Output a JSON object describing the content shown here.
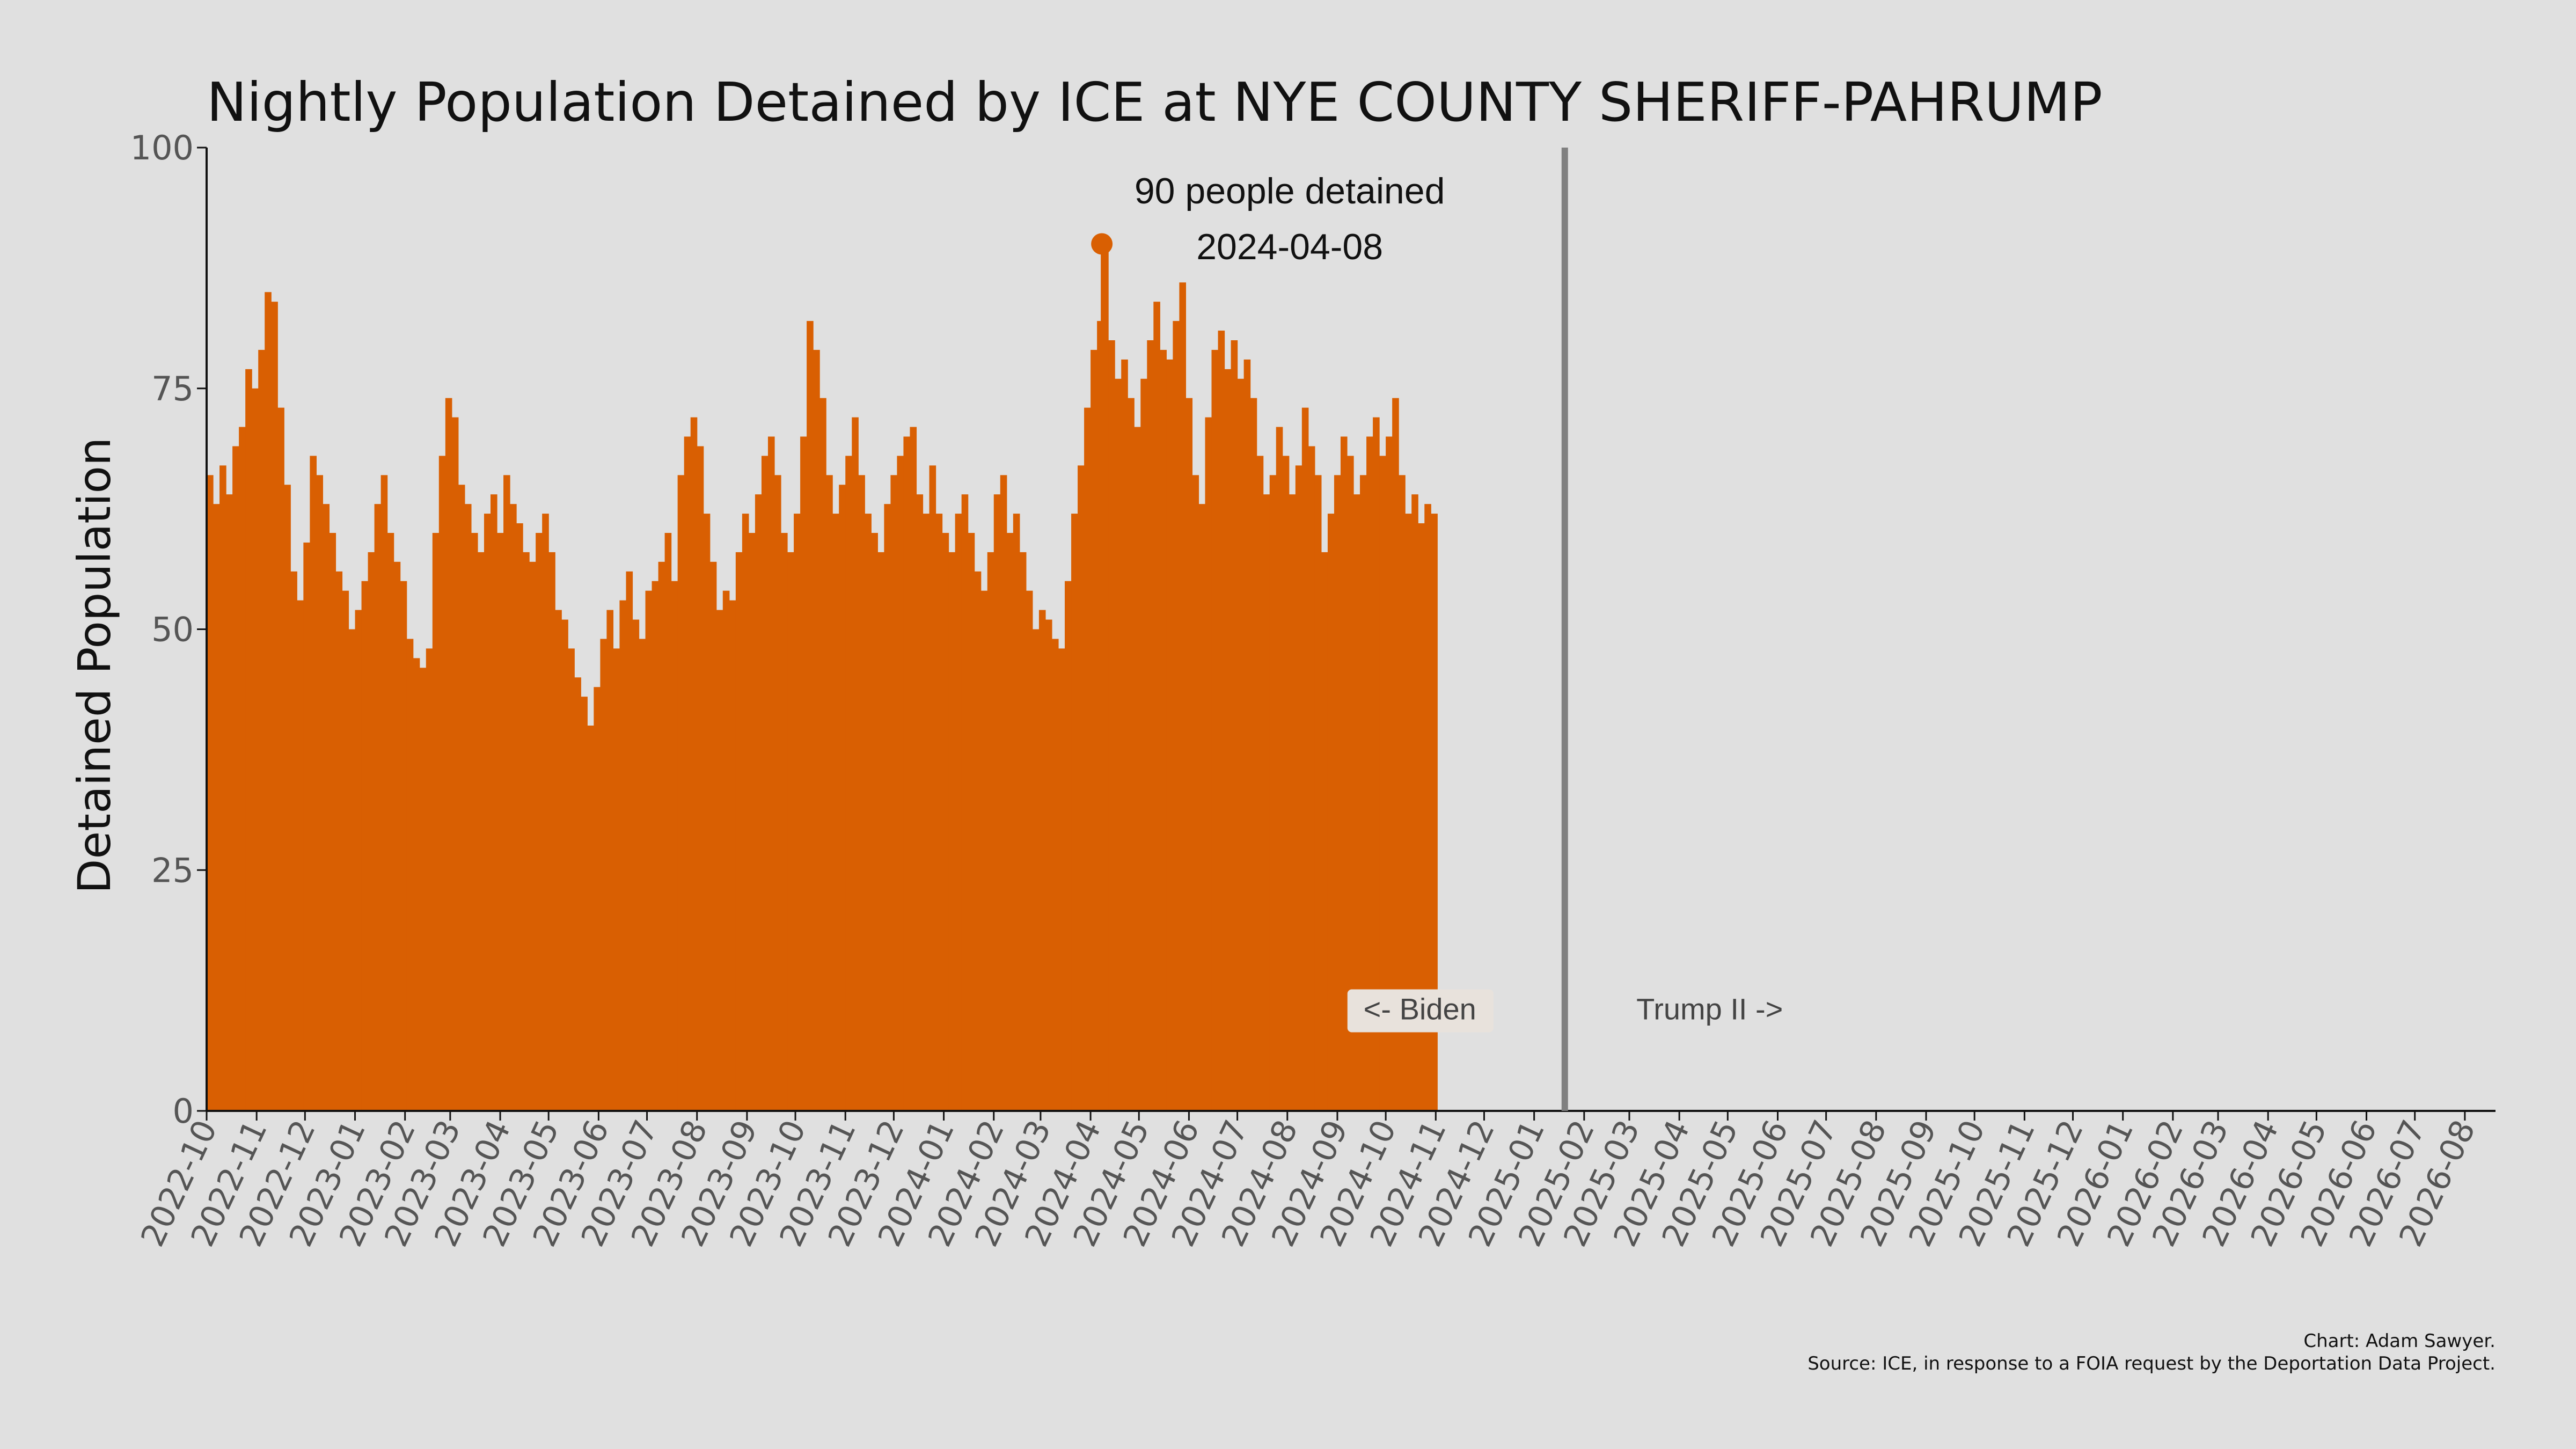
{
  "chart_data": {
    "type": "bar",
    "title": "Nightly Population Detained by ICE at NYE COUNTY SHERIFF-PAHRUMP",
    "xlabel": "",
    "ylabel": "Detained Population",
    "ylim": [
      0,
      100
    ],
    "yticks": [
      "0",
      "25",
      "50",
      "75",
      "100"
    ],
    "xlim": [
      "2022-10-01",
      "2026-08-20"
    ],
    "xticks": [
      "2022-10",
      "2022-11",
      "2022-12",
      "2023-01",
      "2023-02",
      "2023-03",
      "2023-04",
      "2023-05",
      "2023-06",
      "2023-07",
      "2023-08",
      "2023-09",
      "2023-10",
      "2023-11",
      "2023-12",
      "2024-01",
      "2024-02",
      "2024-03",
      "2024-04",
      "2024-05",
      "2024-06",
      "2024-07",
      "2024-08",
      "2024-09",
      "2024-10",
      "2024-11",
      "2024-12",
      "2025-01",
      "2025-02",
      "2025-03",
      "2025-04",
      "2025-05",
      "2025-06",
      "2025-07",
      "2025-08",
      "2025-09",
      "2025-10",
      "2025-11",
      "2025-12",
      "2026-01",
      "2026-02",
      "2026-03",
      "2026-04",
      "2026-05",
      "2026-06",
      "2026-07",
      "2026-08"
    ],
    "grid": false,
    "color": "#d95f02",
    "series": [
      {
        "values": [
          [
            "2022-10-01",
            66
          ],
          [
            "2022-10-05",
            63
          ],
          [
            "2022-10-09",
            67
          ],
          [
            "2022-10-13",
            64
          ],
          [
            "2022-10-17",
            69
          ],
          [
            "2022-10-21",
            71
          ],
          [
            "2022-10-25",
            77
          ],
          [
            "2022-10-29",
            75
          ],
          [
            "2022-11-02",
            79
          ],
          [
            "2022-11-06",
            85
          ],
          [
            "2022-11-10",
            84
          ],
          [
            "2022-11-14",
            73
          ],
          [
            "2022-11-18",
            65
          ],
          [
            "2022-11-22",
            56
          ],
          [
            "2022-11-26",
            53
          ],
          [
            "2022-11-30",
            59
          ],
          [
            "2022-12-04",
            68
          ],
          [
            "2022-12-08",
            66
          ],
          [
            "2022-12-12",
            63
          ],
          [
            "2022-12-16",
            60
          ],
          [
            "2022-12-20",
            56
          ],
          [
            "2022-12-24",
            54
          ],
          [
            "2022-12-28",
            50
          ],
          [
            "2023-01-01",
            52
          ],
          [
            "2023-01-05",
            55
          ],
          [
            "2023-01-09",
            58
          ],
          [
            "2023-01-13",
            63
          ],
          [
            "2023-01-17",
            66
          ],
          [
            "2023-01-21",
            60
          ],
          [
            "2023-01-25",
            57
          ],
          [
            "2023-01-29",
            55
          ],
          [
            "2023-02-02",
            49
          ],
          [
            "2023-02-06",
            47
          ],
          [
            "2023-02-10",
            46
          ],
          [
            "2023-02-14",
            48
          ],
          [
            "2023-02-18",
            60
          ],
          [
            "2023-02-22",
            68
          ],
          [
            "2023-02-26",
            74
          ],
          [
            "2023-03-02",
            72
          ],
          [
            "2023-03-06",
            65
          ],
          [
            "2023-03-10",
            63
          ],
          [
            "2023-03-14",
            60
          ],
          [
            "2023-03-18",
            58
          ],
          [
            "2023-03-22",
            62
          ],
          [
            "2023-03-26",
            64
          ],
          [
            "2023-03-30",
            60
          ],
          [
            "2023-04-03",
            66
          ],
          [
            "2023-04-07",
            63
          ],
          [
            "2023-04-11",
            61
          ],
          [
            "2023-04-15",
            58
          ],
          [
            "2023-04-19",
            57
          ],
          [
            "2023-04-23",
            60
          ],
          [
            "2023-04-27",
            62
          ],
          [
            "2023-05-01",
            58
          ],
          [
            "2023-05-05",
            52
          ],
          [
            "2023-05-09",
            51
          ],
          [
            "2023-05-13",
            48
          ],
          [
            "2023-05-17",
            45
          ],
          [
            "2023-05-21",
            43
          ],
          [
            "2023-05-25",
            40
          ],
          [
            "2023-05-29",
            44
          ],
          [
            "2023-06-02",
            49
          ],
          [
            "2023-06-06",
            52
          ],
          [
            "2023-06-10",
            48
          ],
          [
            "2023-06-14",
            53
          ],
          [
            "2023-06-18",
            56
          ],
          [
            "2023-06-22",
            51
          ],
          [
            "2023-06-26",
            49
          ],
          [
            "2023-06-30",
            54
          ],
          [
            "2023-07-04",
            55
          ],
          [
            "2023-07-08",
            57
          ],
          [
            "2023-07-12",
            60
          ],
          [
            "2023-07-16",
            55
          ],
          [
            "2023-07-20",
            66
          ],
          [
            "2023-07-24",
            70
          ],
          [
            "2023-07-28",
            72
          ],
          [
            "2023-08-01",
            69
          ],
          [
            "2023-08-05",
            62
          ],
          [
            "2023-08-09",
            57
          ],
          [
            "2023-08-13",
            52
          ],
          [
            "2023-08-17",
            54
          ],
          [
            "2023-08-21",
            53
          ],
          [
            "2023-08-25",
            58
          ],
          [
            "2023-08-29",
            62
          ],
          [
            "2023-09-02",
            60
          ],
          [
            "2023-09-06",
            64
          ],
          [
            "2023-09-10",
            68
          ],
          [
            "2023-09-14",
            70
          ],
          [
            "2023-09-18",
            66
          ],
          [
            "2023-09-22",
            60
          ],
          [
            "2023-09-26",
            58
          ],
          [
            "2023-09-30",
            62
          ],
          [
            "2023-10-04",
            70
          ],
          [
            "2023-10-08",
            82
          ],
          [
            "2023-10-12",
            79
          ],
          [
            "2023-10-16",
            74
          ],
          [
            "2023-10-20",
            66
          ],
          [
            "2023-10-24",
            62
          ],
          [
            "2023-10-28",
            65
          ],
          [
            "2023-11-01",
            68
          ],
          [
            "2023-11-05",
            72
          ],
          [
            "2023-11-09",
            66
          ],
          [
            "2023-11-13",
            62
          ],
          [
            "2023-11-17",
            60
          ],
          [
            "2023-11-21",
            58
          ],
          [
            "2023-11-25",
            63
          ],
          [
            "2023-11-29",
            66
          ],
          [
            "2023-12-03",
            68
          ],
          [
            "2023-12-07",
            70
          ],
          [
            "2023-12-11",
            71
          ],
          [
            "2023-12-15",
            64
          ],
          [
            "2023-12-19",
            62
          ],
          [
            "2023-12-23",
            67
          ],
          [
            "2023-12-27",
            62
          ],
          [
            "2023-12-31",
            60
          ],
          [
            "2024-01-04",
            58
          ],
          [
            "2024-01-08",
            62
          ],
          [
            "2024-01-12",
            64
          ],
          [
            "2024-01-16",
            60
          ],
          [
            "2024-01-20",
            56
          ],
          [
            "2024-01-24",
            54
          ],
          [
            "2024-01-28",
            58
          ],
          [
            "2024-02-01",
            64
          ],
          [
            "2024-02-05",
            66
          ],
          [
            "2024-02-09",
            60
          ],
          [
            "2024-02-13",
            62
          ],
          [
            "2024-02-17",
            58
          ],
          [
            "2024-02-21",
            54
          ],
          [
            "2024-02-25",
            50
          ],
          [
            "2024-02-29",
            52
          ],
          [
            "2024-03-04",
            51
          ],
          [
            "2024-03-08",
            49
          ],
          [
            "2024-03-12",
            48
          ],
          [
            "2024-03-16",
            55
          ],
          [
            "2024-03-20",
            62
          ],
          [
            "2024-03-24",
            67
          ],
          [
            "2024-03-28",
            73
          ],
          [
            "2024-04-01",
            79
          ],
          [
            "2024-04-05",
            82
          ],
          [
            "2024-04-08",
            90
          ],
          [
            "2024-04-12",
            80
          ],
          [
            "2024-04-16",
            76
          ],
          [
            "2024-04-20",
            78
          ],
          [
            "2024-04-24",
            74
          ],
          [
            "2024-04-28",
            71
          ],
          [
            "2024-05-02",
            76
          ],
          [
            "2024-05-06",
            80
          ],
          [
            "2024-05-10",
            84
          ],
          [
            "2024-05-14",
            79
          ],
          [
            "2024-05-18",
            78
          ],
          [
            "2024-05-22",
            82
          ],
          [
            "2024-05-26",
            86
          ],
          [
            "2024-05-30",
            74
          ],
          [
            "2024-06-03",
            66
          ],
          [
            "2024-06-07",
            63
          ],
          [
            "2024-06-11",
            72
          ],
          [
            "2024-06-15",
            79
          ],
          [
            "2024-06-19",
            81
          ],
          [
            "2024-06-23",
            77
          ],
          [
            "2024-06-27",
            80
          ],
          [
            "2024-07-01",
            76
          ],
          [
            "2024-07-05",
            78
          ],
          [
            "2024-07-09",
            74
          ],
          [
            "2024-07-13",
            68
          ],
          [
            "2024-07-17",
            64
          ],
          [
            "2024-07-21",
            66
          ],
          [
            "2024-07-25",
            71
          ],
          [
            "2024-07-29",
            68
          ],
          [
            "2024-08-02",
            64
          ],
          [
            "2024-08-06",
            67
          ],
          [
            "2024-08-10",
            73
          ],
          [
            "2024-08-14",
            69
          ],
          [
            "2024-08-18",
            66
          ],
          [
            "2024-08-22",
            58
          ],
          [
            "2024-08-26",
            62
          ],
          [
            "2024-08-30",
            66
          ],
          [
            "2024-09-03",
            70
          ],
          [
            "2024-09-07",
            68
          ],
          [
            "2024-09-11",
            64
          ],
          [
            "2024-09-15",
            66
          ],
          [
            "2024-09-19",
            70
          ],
          [
            "2024-09-23",
            72
          ],
          [
            "2024-09-27",
            68
          ],
          [
            "2024-10-01",
            70
          ],
          [
            "2024-10-05",
            74
          ],
          [
            "2024-10-09",
            66
          ],
          [
            "2024-10-13",
            62
          ],
          [
            "2024-10-17",
            64
          ],
          [
            "2024-10-21",
            61
          ],
          [
            "2024-10-25",
            63
          ],
          [
            "2024-10-29",
            62
          ]
        ]
      }
    ],
    "peak": {
      "date": "2024-04-08",
      "value": 90
    },
    "annotations": {
      "peak_count": "90 people detained",
      "peak_date": "2024-04-08",
      "biden": "<- Biden",
      "trump": "Trump II ->",
      "divider_date": "2025-01-20"
    },
    "caption": {
      "line1": "Chart: Adam Sawyer.",
      "line2": "Source: ICE, in response to a FOIA request by the Deportation Data Project."
    }
  }
}
